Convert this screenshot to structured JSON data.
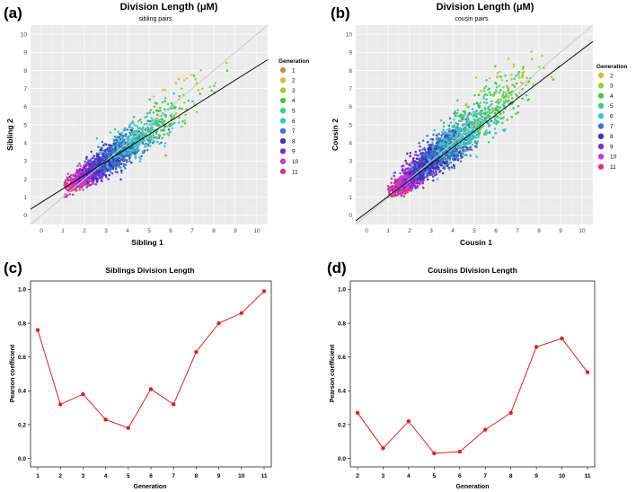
{
  "chart_data": [
    {
      "panel_label": "(a)",
      "type": "scatter",
      "title": "Division Length (μM)",
      "subtitle": "sibling pairs",
      "xlabel": "Sibling 1",
      "ylabel": "Sibling 2",
      "xlim": [
        -0.5,
        10.5
      ],
      "ylim": [
        -0.5,
        10.5
      ],
      "xticks": [
        "0",
        "1",
        "2",
        "3",
        "4",
        "5",
        "6",
        "7",
        "8",
        "9",
        "10"
      ],
      "yticks": [
        "0",
        "1",
        "2",
        "3",
        "4",
        "5",
        "6",
        "7",
        "8",
        "9",
        "10"
      ],
      "grid": true,
      "legend_title": "Generation",
      "legend_position": "right",
      "legend": [
        {
          "label": "1",
          "color": "#d9804a"
        },
        {
          "label": "2",
          "color": "#c9c43a"
        },
        {
          "label": "3",
          "color": "#9ccf36"
        },
        {
          "label": "4",
          "color": "#55c23e"
        },
        {
          "label": "5",
          "color": "#3ccf86"
        },
        {
          "label": "6",
          "color": "#3ec6cf"
        },
        {
          "label": "7",
          "color": "#3a78c8"
        },
        {
          "label": "8",
          "color": "#3a38b8"
        },
        {
          "label": "9",
          "color": "#7a2fd0"
        },
        {
          "label": "10",
          "color": "#cc38d4"
        },
        {
          "label": "11",
          "color": "#d43a7c"
        }
      ],
      "reference_lines": [
        {
          "name": "identity",
          "slope": 1,
          "intercept": 0,
          "color": "#c8c8c8"
        },
        {
          "name": "regression",
          "slope": 0.75,
          "intercept": 0.72,
          "color": "#000000"
        }
      ],
      "point_clusters": [
        {
          "generation": "11",
          "center": [
            1.9,
            2.0
          ],
          "spread": [
            0.45,
            0.4
          ],
          "count": 380
        },
        {
          "generation": "10",
          "center": [
            2.3,
            2.4
          ],
          "spread": [
            0.5,
            0.45
          ],
          "count": 420
        },
        {
          "generation": "9",
          "center": [
            2.8,
            2.8
          ],
          "spread": [
            0.55,
            0.5
          ],
          "count": 450
        },
        {
          "generation": "8",
          "center": [
            3.3,
            3.2
          ],
          "spread": [
            0.65,
            0.6
          ],
          "count": 400
        },
        {
          "generation": "7",
          "center": [
            3.8,
            3.6
          ],
          "spread": [
            0.75,
            0.7
          ],
          "count": 320
        },
        {
          "generation": "6",
          "center": [
            4.5,
            4.2
          ],
          "spread": [
            0.9,
            0.8
          ],
          "count": 180
        },
        {
          "generation": "5",
          "center": [
            5.2,
            5.0
          ],
          "spread": [
            1.0,
            0.9
          ],
          "count": 90
        },
        {
          "generation": "4",
          "center": [
            5.8,
            5.6
          ],
          "spread": [
            1.1,
            1.0
          ],
          "count": 55
        },
        {
          "generation": "3",
          "center": [
            6.5,
            6.2
          ],
          "spread": [
            1.0,
            1.0
          ],
          "count": 22
        },
        {
          "generation": "2",
          "center": [
            6.8,
            7.2
          ],
          "spread": [
            0.9,
            1.0
          ],
          "count": 8
        }
      ]
    },
    {
      "panel_label": "(b)",
      "type": "scatter",
      "title": "Division Length (μM)",
      "subtitle": "cousin pairs",
      "xlabel": "Cousin 1",
      "ylabel": "Cousin 2",
      "xlim": [
        -0.5,
        10.5
      ],
      "ylim": [
        -0.5,
        10.5
      ],
      "xticks": [
        "0",
        "1",
        "2",
        "3",
        "4",
        "5",
        "6",
        "7",
        "8",
        "9",
        "10"
      ],
      "yticks": [
        "0",
        "1",
        "2",
        "3",
        "4",
        "5",
        "6",
        "7",
        "8",
        "9",
        "10"
      ],
      "grid": true,
      "legend_title": "Generation",
      "legend_position": "right",
      "legend": [
        {
          "label": "2",
          "color": "#c9c43a"
        },
        {
          "label": "3",
          "color": "#9ccf36"
        },
        {
          "label": "4",
          "color": "#55c23e"
        },
        {
          "label": "5",
          "color": "#3ccf86"
        },
        {
          "label": "6",
          "color": "#3ec6cf"
        },
        {
          "label": "7",
          "color": "#3a78c8"
        },
        {
          "label": "8",
          "color": "#3a38b8"
        },
        {
          "label": "9",
          "color": "#7a2fd0"
        },
        {
          "label": "10",
          "color": "#cc38d4"
        },
        {
          "label": "11",
          "color": "#d43a7c"
        }
      ],
      "reference_lines": [
        {
          "name": "identity",
          "slope": 1,
          "intercept": 0,
          "color": "#c8c8c8"
        },
        {
          "name": "regression",
          "slope": 0.9,
          "intercept": 0.15,
          "color": "#000000"
        }
      ],
      "point_clusters": [
        {
          "generation": "11",
          "center": [
            1.7,
            1.7
          ],
          "spread": [
            0.35,
            0.35
          ],
          "count": 520
        },
        {
          "generation": "10",
          "center": [
            2.2,
            2.2
          ],
          "spread": [
            0.45,
            0.45
          ],
          "count": 480
        },
        {
          "generation": "9",
          "center": [
            2.8,
            2.8
          ],
          "spread": [
            0.55,
            0.6
          ],
          "count": 520
        },
        {
          "generation": "8",
          "center": [
            3.3,
            3.3
          ],
          "spread": [
            0.7,
            0.7
          ],
          "count": 500
        },
        {
          "generation": "7",
          "center": [
            3.9,
            3.9
          ],
          "spread": [
            0.8,
            0.8
          ],
          "count": 420
        },
        {
          "generation": "6",
          "center": [
            4.6,
            4.6
          ],
          "spread": [
            0.95,
            0.95
          ],
          "count": 260
        },
        {
          "generation": "5",
          "center": [
            5.4,
            5.6
          ],
          "spread": [
            1.0,
            1.1
          ],
          "count": 170
        },
        {
          "generation": "4",
          "center": [
            6.0,
            6.2
          ],
          "spread": [
            1.1,
            1.1
          ],
          "count": 90
        },
        {
          "generation": "3",
          "center": [
            6.6,
            7.2
          ],
          "spread": [
            1.1,
            1.0
          ],
          "count": 40
        },
        {
          "generation": "2",
          "center": [
            7.0,
            8.0
          ],
          "spread": [
            1.0,
            0.9
          ],
          "count": 12
        }
      ]
    },
    {
      "panel_label": "(c)",
      "type": "line",
      "title": "Siblings Division Length",
      "xlabel": "Generation",
      "ylabel": "Pearson coefficient",
      "x": [
        "1",
        "2",
        "3",
        "4",
        "5",
        "6",
        "7",
        "8",
        "9",
        "10",
        "11"
      ],
      "values": [
        0.76,
        0.32,
        0.38,
        0.23,
        0.18,
        0.41,
        0.32,
        0.63,
        0.8,
        0.86,
        0.99
      ],
      "ylim": [
        -0.05,
        1.05
      ],
      "yticks": [
        "0.0",
        "0.2",
        "0.4",
        "0.6",
        "0.8",
        "1.0"
      ],
      "color": "#e02020"
    },
    {
      "panel_label": "(d)",
      "type": "line",
      "title": "Cousins Division Length",
      "xlabel": "Generation",
      "ylabel": "Pearson coefficient",
      "x": [
        "2",
        "3",
        "4",
        "5",
        "6",
        "7",
        "8",
        "9",
        "10",
        "11"
      ],
      "values": [
        0.27,
        0.06,
        0.22,
        0.03,
        0.04,
        0.17,
        0.27,
        0.66,
        0.71,
        0.51
      ],
      "ylim": [
        -0.05,
        1.05
      ],
      "yticks": [
        "0.0",
        "0.2",
        "0.4",
        "0.6",
        "0.8",
        "1.0"
      ],
      "color": "#e02020"
    }
  ]
}
